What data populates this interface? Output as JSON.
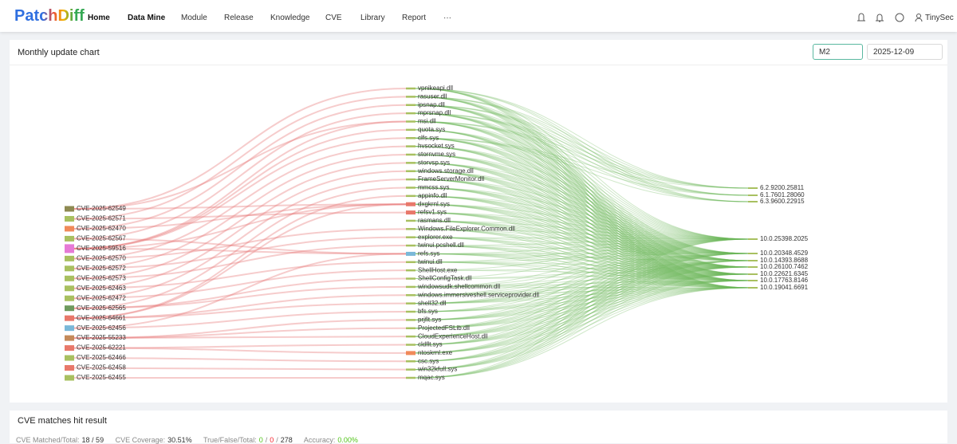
{
  "header": {
    "logo": "PatchDiff",
    "nav": [
      "Home",
      "Data Mine",
      "Module",
      "Release",
      "Knowledge",
      "CVE",
      "Library",
      "Report",
      "···"
    ],
    "active": "Data Mine",
    "user": "TinySec"
  },
  "chart_panel": {
    "title": "Monthly update chart",
    "select": "M2",
    "date": "2025-12-09"
  },
  "sankey": {
    "cves": [
      {
        "label": "CVE-2025-62549",
        "color": "#8e8a52",
        "targets": [
          0,
          4,
          14
        ]
      },
      {
        "label": "CVE-2025-62571",
        "color": "#a8c060",
        "targets": [
          1,
          15
        ]
      },
      {
        "label": "CVE-2025-62470",
        "color": "#f08a5a",
        "targets": [
          2,
          14
        ]
      },
      {
        "label": "CVE-2025-62567",
        "color": "#a8c060",
        "targets": [
          3,
          20
        ]
      },
      {
        "label": "CVE-2025-59516",
        "color": "#e67ad6",
        "targets": [
          4,
          5,
          6,
          14,
          20
        ]
      },
      {
        "label": "CVE-2025-62570",
        "color": "#a8c060",
        "targets": [
          7,
          17
        ]
      },
      {
        "label": "CVE-2025-62572",
        "color": "#a8c060",
        "targets": [
          8,
          18
        ]
      },
      {
        "label": "CVE-2025-62573",
        "color": "#a8c060",
        "targets": [
          9,
          19
        ]
      },
      {
        "label": "CVE-2025-62463",
        "color": "#a8c060",
        "targets": [
          10,
          21
        ]
      },
      {
        "label": "CVE-2025-62472",
        "color": "#a8c060",
        "targets": [
          11,
          22
        ]
      },
      {
        "label": "CVE-2025-62565",
        "color": "#6e9a5e",
        "targets": [
          12,
          23,
          24
        ]
      },
      {
        "label": "CVE-2025-64661",
        "color": "#e8786a",
        "targets": [
          13,
          14,
          25,
          26
        ]
      },
      {
        "label": "CVE-2025-62456",
        "color": "#7ab8d8",
        "targets": [
          20,
          27
        ]
      },
      {
        "label": "CVE-2025-55233",
        "color": "#c48a5a",
        "targets": [
          28,
          29,
          30
        ]
      },
      {
        "label": "CVE-2025-62221",
        "color": "#e8786a",
        "targets": [
          31,
          32
        ]
      },
      {
        "label": "CVE-2025-62466",
        "color": "#a8c060",
        "targets": [
          33
        ]
      },
      {
        "label": "CVE-2025-62458",
        "color": "#e8786a",
        "targets": [
          34
        ]
      },
      {
        "label": "CVE-2025-62455",
        "color": "#a8c060",
        "targets": [
          35
        ]
      }
    ],
    "files": [
      {
        "label": "vpnikeapi.dll",
        "color": "#a8c060",
        "targets": [
          0,
          1,
          2,
          3,
          4,
          5,
          6,
          7,
          8,
          9
        ]
      },
      {
        "label": "rasuser.dll",
        "color": "#a8c060",
        "targets": [
          0,
          1,
          2,
          3,
          4,
          5,
          6,
          7,
          8,
          9
        ]
      },
      {
        "label": "ipsnap.dll",
        "color": "#a8c060",
        "targets": [
          0,
          1,
          2,
          3,
          4,
          5,
          6,
          7,
          8,
          9
        ]
      },
      {
        "label": "mprsnap.dll",
        "color": "#a8c060",
        "targets": [
          0,
          1,
          2,
          3,
          4,
          5,
          6,
          7,
          8,
          9
        ]
      },
      {
        "label": "msi.dll",
        "color": "#a8c060",
        "targets": [
          0,
          1,
          2,
          3,
          4,
          5,
          6,
          7,
          8,
          9
        ]
      },
      {
        "label": "quota.sys",
        "color": "#a8c060",
        "targets": [
          3,
          4,
          5,
          6,
          7,
          8,
          9
        ]
      },
      {
        "label": "clfs.sys",
        "color": "#a8c060",
        "targets": [
          0,
          1,
          2,
          3,
          4,
          5,
          6,
          7,
          8,
          9
        ]
      },
      {
        "label": "hvsocket.sys",
        "color": "#a8c060",
        "targets": [
          3,
          4,
          5,
          6,
          7,
          8,
          9
        ]
      },
      {
        "label": "stornvme.sys",
        "color": "#a8c060",
        "targets": [
          3,
          4,
          5,
          6,
          7,
          8,
          9
        ]
      },
      {
        "label": "storvsp.sys",
        "color": "#a8c060",
        "targets": [
          3,
          4,
          5,
          6,
          7,
          8,
          9
        ]
      },
      {
        "label": "windows.storage.dll",
        "color": "#a8c060",
        "targets": [
          3,
          4,
          5,
          6,
          7,
          8,
          9
        ]
      },
      {
        "label": "FrameServerMonitor.dll",
        "color": "#a8c060",
        "targets": [
          3,
          4,
          5,
          6,
          7,
          8,
          9
        ]
      },
      {
        "label": "mmcss.sys",
        "color": "#a8c060",
        "targets": [
          3,
          4,
          5,
          6,
          7,
          8,
          9
        ]
      },
      {
        "label": "appinfo.dll",
        "color": "#a8c060",
        "targets": [
          3,
          4,
          5,
          6,
          7,
          8,
          9
        ]
      },
      {
        "label": "dxgkrnl.sys",
        "color": "#e8786a",
        "targets": [
          3,
          4,
          5,
          6,
          7,
          8,
          9
        ]
      },
      {
        "label": "refsv1.sys",
        "color": "#e8786a",
        "targets": [
          3,
          4,
          5,
          6,
          7,
          8,
          9
        ]
      },
      {
        "label": "rasmans.dll",
        "color": "#a8c060",
        "targets": [
          3,
          4,
          5,
          6,
          7,
          8,
          9
        ]
      },
      {
        "label": "Windows.FileExplorer.Common.dll",
        "color": "#a8c060",
        "targets": [
          3,
          4,
          6,
          7,
          8,
          9
        ]
      },
      {
        "label": "explorer.exe",
        "color": "#a8c060",
        "targets": [
          3,
          4,
          6,
          7,
          8,
          9
        ]
      },
      {
        "label": "twinui.pcshell.dll",
        "color": "#a8c060",
        "targets": [
          3,
          4,
          6,
          7,
          8,
          9
        ]
      },
      {
        "label": "refs.sys",
        "color": "#7ab8d8",
        "targets": [
          3,
          4,
          5,
          6,
          7,
          8,
          9
        ]
      },
      {
        "label": "twinui.dll",
        "color": "#a8c060",
        "targets": [
          3,
          4,
          6,
          7,
          8,
          9
        ]
      },
      {
        "label": "ShellHost.exe",
        "color": "#a8c060",
        "targets": [
          3,
          6,
          7
        ]
      },
      {
        "label": "ShellConfigTask.dll",
        "color": "#a8c060",
        "targets": [
          3,
          6,
          7
        ]
      },
      {
        "label": "windowsudk.shellcommon.dll",
        "color": "#a8c060",
        "targets": [
          3,
          4,
          6,
          7,
          8,
          9
        ]
      },
      {
        "label": "windows.immersiveshell.serviceprovider.dll",
        "color": "#a8c060",
        "targets": [
          3,
          4,
          6,
          7,
          8,
          9
        ]
      },
      {
        "label": "shell32.dll",
        "color": "#a8c060",
        "targets": [
          3,
          4,
          5,
          6,
          7,
          8,
          9
        ]
      },
      {
        "label": "bfs.sys",
        "color": "#a8c060",
        "targets": [
          3,
          4,
          6,
          7,
          8,
          9
        ]
      },
      {
        "label": "prjflt.sys",
        "color": "#a8c060",
        "targets": [
          3,
          4,
          5,
          6,
          7,
          8,
          9
        ]
      },
      {
        "label": "ProjectedFSLib.dll",
        "color": "#a8c060",
        "targets": [
          3,
          4,
          5,
          6,
          7,
          8,
          9
        ]
      },
      {
        "label": "CloudExperienceHost.dll",
        "color": "#a8c060",
        "targets": [
          3,
          4,
          5,
          6,
          7,
          8,
          9
        ]
      },
      {
        "label": "cldflt.sys",
        "color": "#a8c060",
        "targets": [
          3,
          4,
          5,
          6,
          7,
          8,
          9
        ]
      },
      {
        "label": "ntoskrnl.exe",
        "color": "#f08a5a",
        "targets": [
          3,
          4,
          5,
          6,
          7,
          8,
          9
        ]
      },
      {
        "label": "csc.sys",
        "color": "#a8c060",
        "targets": [
          3,
          4,
          5,
          6,
          7,
          8,
          9
        ]
      },
      {
        "label": "win32kfull.sys",
        "color": "#a8c060",
        "targets": [
          3,
          4,
          5,
          6,
          7,
          8,
          9
        ]
      },
      {
        "label": "mqac.sys",
        "color": "#a8c060",
        "targets": [
          3,
          4,
          5,
          6,
          7,
          8,
          9
        ]
      }
    ],
    "versions": [
      {
        "label": "6.2.9200.25811"
      },
      {
        "label": "6.1.7601.28060"
      },
      {
        "label": "6.3.9600.22915"
      },
      {
        "label": "10.0.25398.2025"
      },
      {
        "label": "10.0.20348.4529"
      },
      {
        "label": "10.0.14393.8688"
      },
      {
        "label": "10.0.26100.7462"
      },
      {
        "label": "10.0.22621.6345"
      },
      {
        "label": "10.0.17763.8146"
      },
      {
        "label": "10.0.19041.6691"
      }
    ]
  },
  "result_panel": {
    "title": "CVE matches hit result",
    "stats": {
      "matched_label": "CVE Matched/Total:",
      "matched": "18 / 59",
      "coverage_label": "CVE Coverage:",
      "coverage": "30.51%",
      "tft_label": "True/False/Total:",
      "true": "0",
      "false": "0",
      "total": "278",
      "sep": "/",
      "accuracy_label": "Accuracy:",
      "accuracy": "0.00%"
    }
  }
}
